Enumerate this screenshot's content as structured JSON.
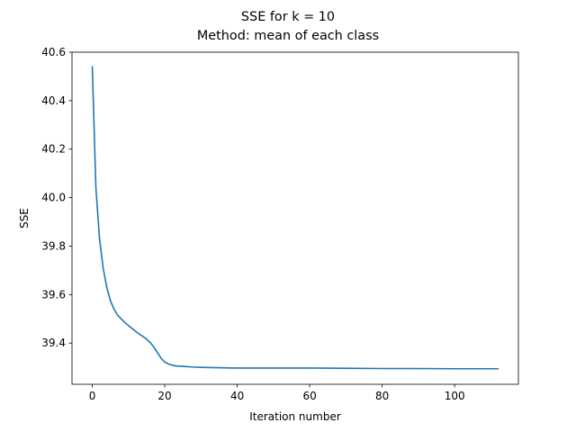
{
  "chart_data": {
    "type": "line",
    "title": "SSE for k = 10",
    "subtitle": "Method: mean of each class",
    "xlabel": "Iteration number",
    "ylabel": "SSE",
    "xlim": [
      -5.6,
      117.6
    ],
    "ylim": [
      39.23,
      40.6
    ],
    "xticks": [
      0,
      20,
      40,
      60,
      80,
      100
    ],
    "xtick_labels": [
      "0",
      "20",
      "40",
      "60",
      "80",
      "100"
    ],
    "yticks": [
      39.4,
      39.6,
      39.8,
      40.0,
      40.2,
      40.4,
      40.6
    ],
    "ytick_labels": [
      "39.4",
      "39.6",
      "39.8",
      "40.0",
      "40.2",
      "40.4",
      "40.6"
    ],
    "grid": false,
    "color": "#1f77b4",
    "series": [
      {
        "x": [
          0,
          1,
          2,
          3,
          4,
          5,
          6,
          7,
          8,
          9,
          10,
          11,
          12,
          13,
          14,
          15,
          16,
          17,
          18,
          19,
          20,
          21,
          22,
          23,
          24,
          25,
          26,
          28,
          30,
          33,
          36,
          40,
          45,
          50,
          60,
          70,
          80,
          90,
          100,
          105,
          110,
          112
        ],
        "y": [
          40.54,
          40.04,
          39.83,
          39.71,
          39.63,
          39.575,
          39.54,
          39.515,
          39.5,
          39.485,
          39.472,
          39.46,
          39.448,
          39.437,
          39.427,
          39.416,
          39.402,
          39.383,
          39.36,
          39.337,
          39.322,
          39.314,
          39.309,
          39.306,
          39.305,
          39.304,
          39.303,
          39.301,
          39.3,
          39.299,
          39.298,
          39.297,
          39.297,
          39.297,
          39.297,
          39.296,
          39.295,
          39.295,
          39.294,
          39.294,
          39.294,
          39.294
        ]
      }
    ]
  }
}
